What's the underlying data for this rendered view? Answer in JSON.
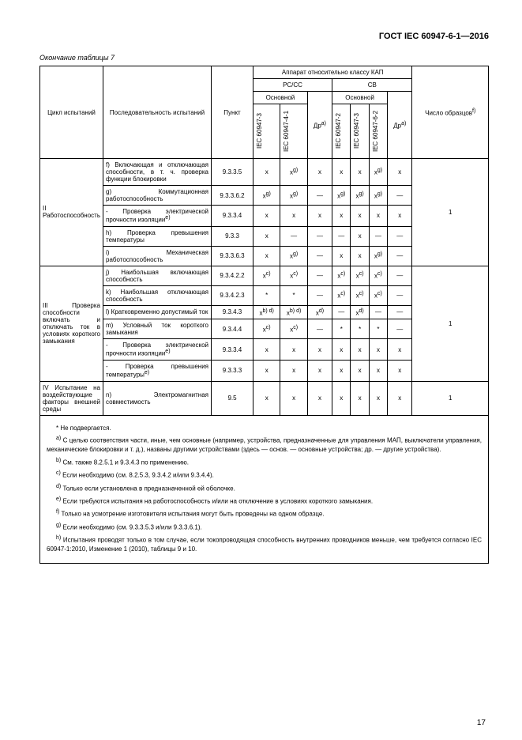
{
  "doc_header": "ГОСТ IEC 60947-6-1—2016",
  "table_caption": "Окончание таблицы 7",
  "header": {
    "cycle": "Цикл испытаний",
    "sequence": "Последовательность испытаний",
    "point": "Пункт",
    "apparatus": "Аппарат относительно классу КАП",
    "pccc": "РС/СС",
    "cb": "СВ",
    "main": "Основной",
    "other": "Др",
    "other_sup": "a)",
    "samples": "Число образцов",
    "samples_sup": "f)",
    "iec3": "IEC 60947-3",
    "iec41": "IEC 60947-4-1",
    "iec2": "IEC 60947-2",
    "iec62": "IEC 60947-6-2"
  },
  "rows": [
    {
      "seq": "f) Включающая и отключающая способности, в т. ч. проверка функции блокировки",
      "pt": "9.3.3.5",
      "v": [
        "x",
        "x<sup>g)</sup>",
        "x",
        "x",
        "x",
        "x<sup>g)</sup>",
        "x"
      ]
    },
    {
      "seq": "g) Коммутационная работоспособность",
      "pt": "9.3.3.6.2",
      "v": [
        "x<sup>g)</sup>",
        "x<sup>g)</sup>",
        "—",
        "x<sup>g)</sup>",
        "x<sup>g)</sup>",
        "x<sup>g)</sup>",
        "—"
      ]
    },
    {
      "seq": "- Проверка электрической прочности изоляции<sup>e)</sup>",
      "pt": "9.3.3.4",
      "v": [
        "x",
        "x",
        "x",
        "x",
        "x",
        "x",
        "x"
      ]
    },
    {
      "seq": "h) Проверка превышения температуры",
      "pt": "9.3.3",
      "v": [
        "x",
        "—",
        "—",
        "—",
        "x",
        "—",
        "—"
      ]
    },
    {
      "seq": "i) Механическая работоспособность",
      "pt": "9.3.3.6.3",
      "v": [
        "x",
        "x<sup>g)</sup>",
        "—",
        "x",
        "x",
        "x<sup>g)</sup>",
        "—"
      ]
    },
    {
      "seq": "j) Наибольшая включающая способность",
      "pt": "9.3.4.2.2",
      "v": [
        "x<sup>c)</sup>",
        "x<sup>c)</sup>",
        "—",
        "x<sup>c)</sup>",
        "x<sup>c)</sup>",
        "x<sup>c)</sup>",
        "—"
      ]
    },
    {
      "seq": "k) Наибольшая отключающая способность",
      "pt": "9.3.4.2.3",
      "v": [
        "*",
        "*",
        "—",
        "x<sup>c)</sup>",
        "x<sup>c)</sup>",
        "x<sup>c)</sup>",
        "—"
      ]
    },
    {
      "seq": "l) Кратковременно допустимый ток",
      "pt": "9.3.4.3",
      "v": [
        "x<sup>b) d)</sup>",
        "x<sup>b) d)</sup>",
        "x<sup>d)</sup>",
        "—",
        "x<sup>d)</sup>",
        "—",
        "—"
      ]
    },
    {
      "seq": "m) Условный ток короткого замыкания",
      "pt": "9.3.4.4",
      "v": [
        "x<sup>c)</sup>",
        "x<sup>c)</sup>",
        "—",
        "*",
        "*",
        "*",
        "—"
      ]
    },
    {
      "seq": "- Проверка электрической прочности изоляции<sup>e)</sup>",
      "pt": "9.3.3.4",
      "v": [
        "x",
        "x",
        "x",
        "x",
        "x",
        "x",
        "x"
      ]
    },
    {
      "seq": "- Проверка превышения температуры<sup>e)</sup>",
      "pt": "9.3.3.3",
      "v": [
        "x",
        "x",
        "x",
        "x",
        "x",
        "x",
        "x"
      ]
    },
    {
      "seq": "n) Электромагнитная совместимость",
      "pt": "9.5",
      "v": [
        "x",
        "x",
        "x",
        "x",
        "x",
        "x",
        "x"
      ]
    }
  ],
  "cycles": {
    "II": "II Работоспособность",
    "III": "III Проверка способности включать и отключать ток в условиях короткого замыкания",
    "IV": "IV Испытание на воздействующие факторы внешней среды"
  },
  "samples": {
    "II": "1",
    "III": "1",
    "IV": "1"
  },
  "notes": {
    "star": "* Не подвергается.",
    "a": "<sup>a)</sup> С целью соответствия части, иные, чем основные (например, устройства, предназначенные для управления МАП, выключатели управления, механические блокировки и т. д.), названы другими устройствами (здесь — основ. — основные устройства; др. — другие устройства).",
    "b": "<sup>b)</sup> См. также 8.2.5.1 и 9.3.4.3 по применению.",
    "c": "<sup>c)</sup> Если необходимо (см. 8.2.5.3, 9.3.4.2 и/или 9.3.4.4).",
    "d": "<sup>d)</sup> Только если установлена в предназначенной ей оболочке.",
    "e": "<sup>e)</sup> Если требуются испытания на работоспособность и/или на отключение в условиях короткого замыкания.",
    "f": "<sup>f)</sup> Только на усмотрение изготовителя испытания могут быть проведены на одном образце.",
    "g": "<sup>g)</sup> Если необходимо (см. 9.3.3.5.3 и/или 9.3.3.6.1).",
    "h": "<sup>h)</sup> Испытания проводят только в том случае, если токопроводящая способность внутренних проводников меньше, чем требуется согласно IEC 60947-1:2010, Изменение 1 (2010), таблицы 9 и 10."
  },
  "page_number": "17"
}
